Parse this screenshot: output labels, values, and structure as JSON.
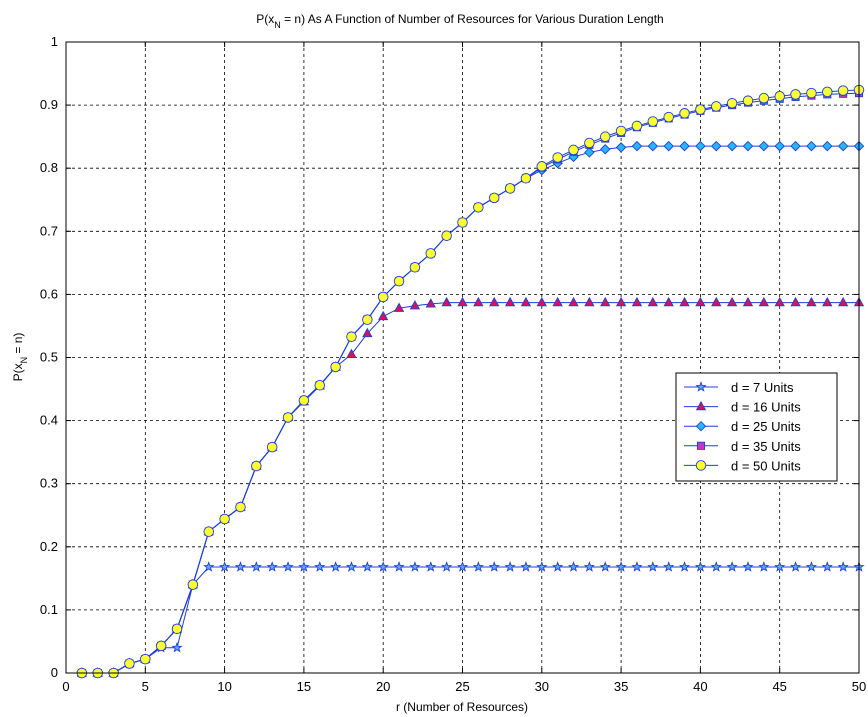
{
  "chart_data": {
    "type": "line",
    "title": "P(x_N = n) As A Function of Number of Resources for Various Duration Length",
    "xlabel": "r (Number of Resources)",
    "ylabel": "P(x_N = n)",
    "xlim": [
      0,
      50
    ],
    "ylim": [
      0,
      1
    ],
    "xticks": [
      "0",
      "5",
      "10",
      "15",
      "20",
      "25",
      "30",
      "35",
      "40",
      "45",
      "50"
    ],
    "yticks": [
      "0",
      "0.1",
      "0.2",
      "0.3",
      "0.4",
      "0.5",
      "0.6",
      "0.7",
      "0.8",
      "0.9",
      "1"
    ],
    "grid": true,
    "legend_position": "right",
    "series": [
      {
        "name": "d = 7  Units",
        "color": "#1f3fd0",
        "marker": "star",
        "marker_fill": "#5fa8ff",
        "x": [
          1,
          2,
          3,
          4,
          5,
          6,
          7,
          8,
          9,
          10,
          11,
          12,
          13,
          14,
          15,
          16,
          17,
          18,
          19,
          20,
          21,
          22,
          23,
          24,
          25,
          26,
          27,
          28,
          29,
          30,
          31,
          32,
          33,
          34,
          35,
          36,
          37,
          38,
          39,
          40,
          41,
          42,
          43,
          44,
          45,
          46,
          47,
          48,
          49,
          50
        ],
        "values": [
          0,
          0,
          0,
          0.015,
          0.022,
          0.04,
          0.04,
          0.14,
          0.168,
          0.168,
          0.168,
          0.168,
          0.168,
          0.168,
          0.168,
          0.168,
          0.168,
          0.168,
          0.168,
          0.168,
          0.168,
          0.168,
          0.168,
          0.168,
          0.168,
          0.168,
          0.168,
          0.168,
          0.168,
          0.168,
          0.168,
          0.168,
          0.168,
          0.168,
          0.168,
          0.168,
          0.168,
          0.168,
          0.168,
          0.168,
          0.168,
          0.168,
          0.168,
          0.168,
          0.168,
          0.168,
          0.168,
          0.168,
          0.168,
          0.168
        ]
      },
      {
        "name": "d = 16 Units",
        "color": "#1f3fd0",
        "marker": "triangle",
        "marker_fill": "#d4145a",
        "x": [
          1,
          2,
          3,
          4,
          5,
          6,
          7,
          8,
          9,
          10,
          11,
          12,
          13,
          14,
          15,
          16,
          17,
          18,
          19,
          20,
          21,
          22,
          23,
          24,
          25,
          26,
          27,
          28,
          29,
          30,
          31,
          32,
          33,
          34,
          35,
          36,
          37,
          38,
          39,
          40,
          41,
          42,
          43,
          44,
          45,
          46,
          47,
          48,
          49,
          50
        ],
        "values": [
          0,
          0,
          0,
          0.015,
          0.022,
          0.043,
          0.07,
          0.14,
          0.224,
          0.244,
          0.263,
          0.328,
          0.358,
          0.405,
          0.43,
          0.455,
          0.485,
          0.505,
          0.538,
          0.565,
          0.578,
          0.582,
          0.585,
          0.587,
          0.587,
          0.587,
          0.587,
          0.587,
          0.587,
          0.587,
          0.587,
          0.587,
          0.587,
          0.587,
          0.587,
          0.587,
          0.587,
          0.587,
          0.587,
          0.587,
          0.587,
          0.587,
          0.587,
          0.587,
          0.587,
          0.587,
          0.587,
          0.587,
          0.587,
          0.587
        ]
      },
      {
        "name": "d = 25 Units",
        "color": "#1f3fd0",
        "marker": "diamond",
        "marker_fill": "#29b6f6",
        "x": [
          1,
          2,
          3,
          4,
          5,
          6,
          7,
          8,
          9,
          10,
          11,
          12,
          13,
          14,
          15,
          16,
          17,
          18,
          19,
          20,
          21,
          22,
          23,
          24,
          25,
          26,
          27,
          28,
          29,
          30,
          31,
          32,
          33,
          34,
          35,
          36,
          37,
          38,
          39,
          40,
          41,
          42,
          43,
          44,
          45,
          46,
          47,
          48,
          49,
          50
        ],
        "values": [
          0,
          0,
          0,
          0.015,
          0.022,
          0.043,
          0.07,
          0.14,
          0.224,
          0.244,
          0.263,
          0.328,
          0.358,
          0.405,
          0.432,
          0.456,
          0.485,
          0.533,
          0.56,
          0.596,
          0.621,
          0.643,
          0.665,
          0.693,
          0.714,
          0.738,
          0.753,
          0.768,
          0.784,
          0.797,
          0.808,
          0.818,
          0.825,
          0.83,
          0.833,
          0.835,
          0.835,
          0.835,
          0.835,
          0.835,
          0.835,
          0.835,
          0.835,
          0.835,
          0.835,
          0.835,
          0.835,
          0.835,
          0.835,
          0.835
        ]
      },
      {
        "name": "d = 35 Units",
        "color": "#1f3fd0",
        "marker": "square",
        "marker_fill": "#cc33cc",
        "x": [
          1,
          2,
          3,
          4,
          5,
          6,
          7,
          8,
          9,
          10,
          11,
          12,
          13,
          14,
          15,
          16,
          17,
          18,
          19,
          20,
          21,
          22,
          23,
          24,
          25,
          26,
          27,
          28,
          29,
          30,
          31,
          32,
          33,
          34,
          35,
          36,
          37,
          38,
          39,
          40,
          41,
          42,
          43,
          44,
          45,
          46,
          47,
          48,
          49,
          50
        ],
        "values": [
          0,
          0,
          0,
          0.015,
          0.022,
          0.043,
          0.07,
          0.14,
          0.224,
          0.244,
          0.263,
          0.328,
          0.358,
          0.405,
          0.432,
          0.456,
          0.485,
          0.533,
          0.56,
          0.596,
          0.621,
          0.643,
          0.665,
          0.693,
          0.714,
          0.738,
          0.753,
          0.768,
          0.784,
          0.801,
          0.814,
          0.826,
          0.837,
          0.847,
          0.856,
          0.865,
          0.872,
          0.879,
          0.885,
          0.891,
          0.896,
          0.9,
          0.904,
          0.907,
          0.91,
          0.913,
          0.915,
          0.917,
          0.918,
          0.919
        ]
      },
      {
        "name": "d = 50 Units",
        "color": "#1f3fd0",
        "marker": "circle",
        "marker_fill": "#ffff33",
        "x": [
          1,
          2,
          3,
          4,
          5,
          6,
          7,
          8,
          9,
          10,
          11,
          12,
          13,
          14,
          15,
          16,
          17,
          18,
          19,
          20,
          21,
          22,
          23,
          24,
          25,
          26,
          27,
          28,
          29,
          30,
          31,
          32,
          33,
          34,
          35,
          36,
          37,
          38,
          39,
          40,
          41,
          42,
          43,
          44,
          45,
          46,
          47,
          48,
          49,
          50
        ],
        "values": [
          0,
          0,
          0,
          0.015,
          0.022,
          0.043,
          0.07,
          0.14,
          0.224,
          0.244,
          0.263,
          0.328,
          0.358,
          0.405,
          0.432,
          0.456,
          0.485,
          0.533,
          0.56,
          0.596,
          0.621,
          0.643,
          0.665,
          0.693,
          0.714,
          0.738,
          0.753,
          0.768,
          0.784,
          0.803,
          0.817,
          0.829,
          0.84,
          0.85,
          0.859,
          0.867,
          0.874,
          0.881,
          0.887,
          0.893,
          0.898,
          0.903,
          0.907,
          0.911,
          0.914,
          0.917,
          0.919,
          0.921,
          0.923,
          0.924
        ]
      }
    ]
  }
}
